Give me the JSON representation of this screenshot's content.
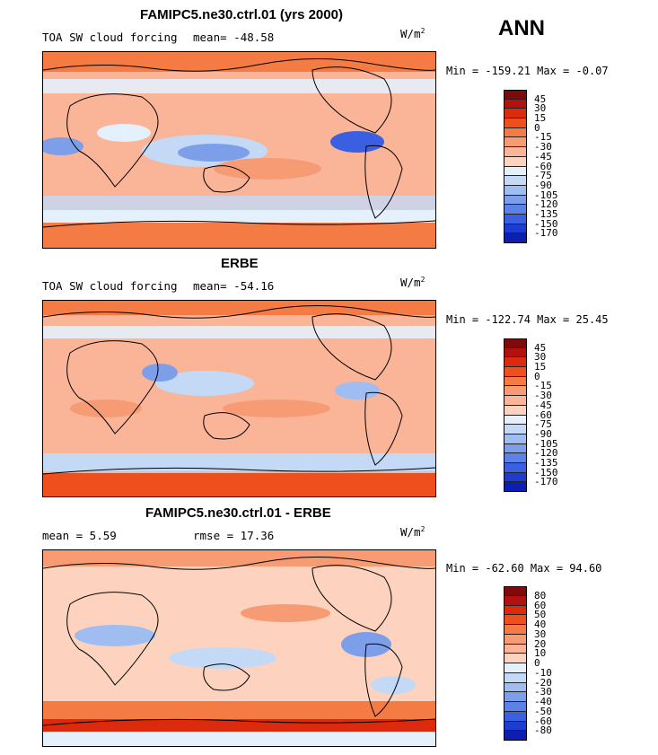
{
  "season": "ANN",
  "units_label": "W/m",
  "units_sup": "2",
  "colors": {
    "pos": [
      "#7e0a0a",
      "#b2110f",
      "#dc2a0e",
      "#ee4f1c",
      "#f47b44",
      "#f79b74",
      "#fab599",
      "#fdd3bf"
    ],
    "neg": [
      "#e4f0fb",
      "#c3d9f6",
      "#9fbdf0",
      "#7d9fea",
      "#5b82e6",
      "#3a5fe0",
      "#1d3dd0",
      "#0d1fb0",
      "#0a0c80"
    ],
    "land": "#000000"
  },
  "panels": [
    {
      "title": "FAMIPC5.ne30.ctrl.01 (yrs 2000)",
      "left_label": "TOA SW cloud forcing",
      "mean_label": "mean=",
      "mean_value": "-48.58",
      "minmax": "Min = -159.21 Max =  -0.07",
      "levels": [
        "45",
        "30",
        "15",
        "0",
        "-15",
        "-30",
        "-45",
        "-60",
        "-75",
        "-90",
        "-105",
        "-120",
        "-135",
        "-150",
        "-170"
      ]
    },
    {
      "title": "ERBE",
      "left_label": "TOA SW cloud forcing",
      "mean_label": "mean=",
      "mean_value": "-54.16",
      "minmax": "Min = -122.74 Max =  25.45",
      "levels": [
        "45",
        "30",
        "15",
        "0",
        "-15",
        "-30",
        "-45",
        "-60",
        "-75",
        "-90",
        "-105",
        "-120",
        "-135",
        "-150",
        "-170"
      ]
    },
    {
      "title": "FAMIPC5.ne30.ctrl.01 - ERBE",
      "left_label": "mean =    5.59",
      "rmse_label": "rmse =   17.36",
      "minmax": "Min = -62.60 Max =  94.60",
      "levels": [
        "80",
        "60",
        "50",
        "40",
        "30",
        "20",
        "10",
        "0",
        "-10",
        "-20",
        "-30",
        "-40",
        "-50",
        "-60",
        "-80"
      ]
    }
  ]
}
